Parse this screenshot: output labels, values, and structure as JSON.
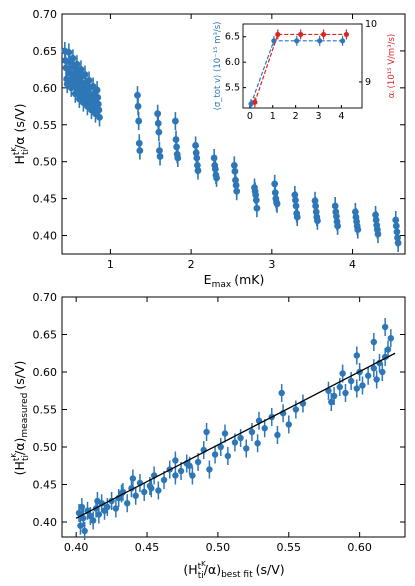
{
  "chart_data": [
    {
      "type": "scatter",
      "panel": "top",
      "xlabel_base": "E",
      "xlabel_sub": "max",
      "xlabel_unit": "(mK)",
      "ylabel_base": "H",
      "ylabel_sup": "t",
      "ylabel_supsub": "K",
      "ylabel_sub": "ti",
      "ylabel_rest": "/α (s/V)",
      "xlim": [
        0.4,
        4.65
      ],
      "ylim": [
        0.375,
        0.7
      ],
      "xticks": [
        1,
        2,
        3,
        4
      ],
      "yticks": [
        0.4,
        0.45,
        0.5,
        0.55,
        0.6,
        0.65,
        0.7
      ],
      "ytick_labels": [
        "0.40",
        "0.45",
        "0.50",
        "0.55",
        "0.60",
        "0.65",
        "0.70"
      ],
      "marker_color": "#2e77b7",
      "groups": [
        {
          "x": 0.45,
          "values": [
            0.65,
            0.637,
            0.627,
            0.612,
            0.605
          ]
        },
        {
          "x": 0.5,
          "values": [
            0.648,
            0.635,
            0.62,
            0.608,
            0.6
          ]
        },
        {
          "x": 0.55,
          "values": [
            0.64,
            0.628,
            0.615,
            0.602,
            0.592
          ]
        },
        {
          "x": 0.6,
          "values": [
            0.632,
            0.622,
            0.608,
            0.597,
            0.585
          ]
        },
        {
          "x": 0.65,
          "values": [
            0.625,
            0.615,
            0.603,
            0.59,
            0.58
          ]
        },
        {
          "x": 0.7,
          "values": [
            0.618,
            0.607,
            0.597,
            0.585,
            0.575
          ]
        },
        {
          "x": 0.75,
          "values": [
            0.61,
            0.6,
            0.59,
            0.58,
            0.57
          ]
        },
        {
          "x": 0.8,
          "values": [
            0.602,
            0.592,
            0.584,
            0.575,
            0.565
          ]
        },
        {
          "x": 0.85,
          "values": [
            0.597,
            0.587,
            0.578,
            0.57,
            0.56
          ]
        },
        {
          "x": 1.35,
          "values": [
            0.59,
            0.575,
            0.555,
            0.525,
            0.515
          ]
        },
        {
          "x": 1.6,
          "values": [
            0.565,
            0.552,
            0.54,
            0.515,
            0.507
          ]
        },
        {
          "x": 1.82,
          "values": [
            0.555,
            0.53,
            0.52,
            0.51,
            0.505
          ]
        },
        {
          "x": 2.07,
          "values": [
            0.522,
            0.512,
            0.505,
            0.495,
            0.488
          ]
        },
        {
          "x": 2.3,
          "values": [
            0.505,
            0.495,
            0.49,
            0.482,
            0.478
          ]
        },
        {
          "x": 2.55,
          "values": [
            0.495,
            0.487,
            0.475,
            0.468,
            0.46
          ]
        },
        {
          "x": 2.8,
          "values": [
            0.465,
            0.46,
            0.455,
            0.448,
            0.437
          ]
        },
        {
          "x": 3.05,
          "values": [
            0.47,
            0.458,
            0.45,
            0.445,
            0.443
          ]
        },
        {
          "x": 3.3,
          "values": [
            0.455,
            0.448,
            0.44,
            0.43,
            0.425
          ]
        },
        {
          "x": 3.55,
          "values": [
            0.447,
            0.44,
            0.432,
            0.425,
            0.42
          ]
        },
        {
          "x": 3.8,
          "values": [
            0.44,
            0.432,
            0.426,
            0.419,
            0.413
          ]
        },
        {
          "x": 4.05,
          "values": [
            0.432,
            0.425,
            0.419,
            0.413,
            0.408
          ]
        },
        {
          "x": 4.3,
          "values": [
            0.428,
            0.421,
            0.414,
            0.408,
            0.402
          ]
        },
        {
          "x": 4.55,
          "values": [
            0.421,
            0.413,
            0.405,
            0.397,
            0.39
          ]
        }
      ]
    },
    {
      "type": "line",
      "panel": "inset",
      "xlim": [
        -0.3,
        4.9
      ],
      "ylim_left": [
        5.1,
        6.75
      ],
      "ylim_right": [
        8.55,
        10.0
      ],
      "xticks": [
        0,
        1,
        2,
        3,
        4
      ],
      "yticks_left": [
        5.0,
        5.5,
        6.0,
        6.5
      ],
      "ytick_labels_left": [
        "5.0",
        "5.5",
        "6.0",
        "6.5"
      ],
      "yticks_right": [
        9,
        10
      ],
      "ylabel_left": "⟨σ_tot v⟩ (10⁻¹⁵ m³/s)",
      "ylabel_right": "αᵢ (10¹⁵ V/m³/s)",
      "ylabel_left_color": "#2e77b7",
      "ylabel_right_color": "#d62728",
      "series": [
        {
          "color": "#2e77b7",
          "x": [
            0.05,
            1.05,
            2.05,
            3.05,
            4.05
          ],
          "values": [
            5.18,
            6.42,
            6.42,
            6.42,
            6.42
          ]
        },
        {
          "color": "#d62728",
          "x": [
            0.22,
            1.22,
            2.22,
            3.22,
            4.22
          ],
          "values": [
            8.65,
            9.82,
            9.82,
            9.82,
            9.82
          ]
        }
      ]
    },
    {
      "type": "scatter",
      "panel": "bottom",
      "xlabel_base": "(H",
      "xlabel_sup": "t",
      "xlabel_supsub": "K",
      "xlabel_sub": "ti",
      "xlabel_rest": "/α)",
      "xlabel_sub2": "best fit",
      "xlabel_unit": "(s/V)",
      "ylabel_base": "(H",
      "ylabel_sup": "t",
      "ylabel_supsub": "K",
      "ylabel_sub": "ti",
      "ylabel_rest": "/α)",
      "ylabel_sub2": "measured",
      "ylabel_unit": "(s/V)",
      "xlim": [
        0.39,
        0.632
      ],
      "ylim": [
        0.38,
        0.7
      ],
      "xticks": [
        0.4,
        0.45,
        0.5,
        0.55,
        0.6
      ],
      "xtick_labels": [
        "0.40",
        "0.45",
        "0.50",
        "0.55",
        "0.60"
      ],
      "yticks": [
        0.4,
        0.45,
        0.5,
        0.55,
        0.6,
        0.65,
        0.7
      ],
      "ytick_labels": [
        "0.40",
        "0.45",
        "0.50",
        "0.55",
        "0.60",
        "0.65",
        "0.70"
      ],
      "fit_line": {
        "x": [
          0.4,
          0.625
        ],
        "values": [
          0.405,
          0.625
        ]
      },
      "points": {
        "x": [
          0.402,
          0.403,
          0.404,
          0.405,
          0.406,
          0.408,
          0.41,
          0.412,
          0.414,
          0.416,
          0.418,
          0.42,
          0.422,
          0.425,
          0.428,
          0.43,
          0.433,
          0.436,
          0.439,
          0.442,
          0.445,
          0.448,
          0.452,
          0.455,
          0.458,
          0.462,
          0.466,
          0.47,
          0.474,
          0.478,
          0.482,
          0.486,
          0.49,
          0.494,
          0.498,
          0.502,
          0.507,
          0.512,
          0.516,
          0.52,
          0.524,
          0.528,
          0.533,
          0.538,
          0.542,
          0.546,
          0.55,
          0.555,
          0.56,
          0.578,
          0.582,
          0.586,
          0.59,
          0.594,
          0.598,
          0.6,
          0.602,
          0.606,
          0.61,
          0.612,
          0.614,
          0.616,
          0.618,
          0.62,
          0.622,
          0.618,
          0.61,
          0.598,
          0.588,
          0.58,
          0.492,
          0.47,
          0.44,
          0.415,
          0.432,
          0.453,
          0.48,
          0.505,
          0.529,
          0.545
        ],
        "values": [
          0.412,
          0.395,
          0.42,
          0.405,
          0.388,
          0.415,
          0.408,
          0.402,
          0.418,
          0.41,
          0.425,
          0.415,
          0.42,
          0.428,
          0.418,
          0.432,
          0.44,
          0.425,
          0.445,
          0.435,
          0.452,
          0.44,
          0.448,
          0.462,
          0.442,
          0.456,
          0.47,
          0.462,
          0.468,
          0.478,
          0.462,
          0.48,
          0.496,
          0.47,
          0.49,
          0.5,
          0.488,
          0.506,
          0.512,
          0.498,
          0.52,
          0.505,
          0.525,
          0.54,
          0.516,
          0.545,
          0.53,
          0.55,
          0.558,
          0.575,
          0.568,
          0.58,
          0.572,
          0.588,
          0.578,
          0.6,
          0.582,
          0.595,
          0.605,
          0.59,
          0.612,
          0.6,
          0.62,
          0.63,
          0.645,
          0.66,
          0.64,
          0.622,
          0.598,
          0.56,
          0.52,
          0.482,
          0.458,
          0.428,
          0.438,
          0.445,
          0.475,
          0.518,
          0.535,
          0.572
        ]
      }
    }
  ]
}
